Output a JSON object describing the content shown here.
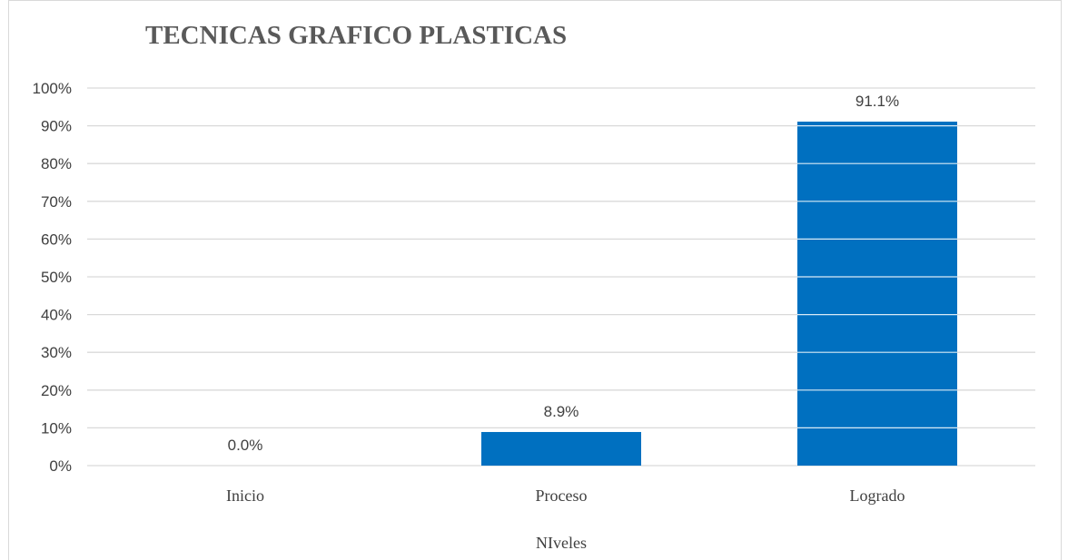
{
  "chart_data": {
    "type": "bar",
    "title": "TECNICAS GRAFICO PLASTICAS",
    "xlabel": "NIveles",
    "ylabel": "",
    "categories": [
      "Inicio",
      "Proceso",
      "Logrado"
    ],
    "values": [
      0.0,
      8.9,
      91.1
    ],
    "data_labels": [
      "0.0%",
      "8.9%",
      "91.1%"
    ],
    "ylim": [
      0,
      100
    ],
    "yticks": [
      0,
      10,
      20,
      30,
      40,
      50,
      60,
      70,
      80,
      90,
      100
    ],
    "ytick_labels": [
      "0%",
      "10%",
      "20%",
      "30%",
      "40%",
      "50%",
      "60%",
      "70%",
      "80%",
      "90%",
      "100%"
    ],
    "grid": true,
    "legend": "none",
    "bar_color": "#0070c0",
    "grid_color": "#d9d9d9"
  }
}
